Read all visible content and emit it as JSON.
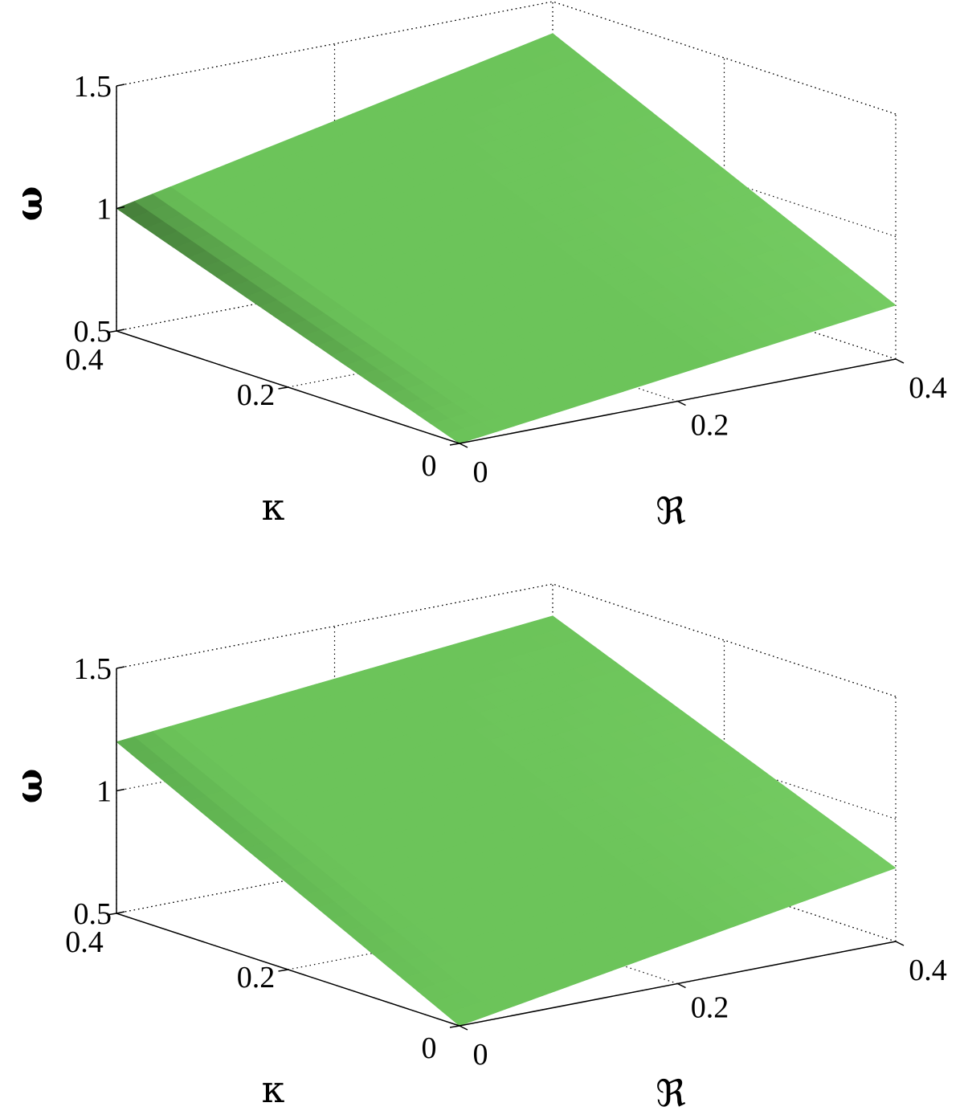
{
  "chart_data": [
    {
      "type": "surface",
      "title": "",
      "xlabel": "ℜ",
      "ylabel": "κ",
      "zlabel": "ω",
      "xlim": [
        0,
        0.4
      ],
      "ylim": [
        0,
        0.4
      ],
      "zlim": [
        0.5,
        1.5
      ],
      "xticks": [
        "0",
        "0.2",
        "0.4"
      ],
      "yticks": [
        "0",
        "0.2",
        "0.4"
      ],
      "zticks": [
        "0.5",
        "1",
        "1.5"
      ],
      "grid": true,
      "surface_color": "#6cc45a",
      "shadow_color": "#1f3a1a",
      "corners": {
        "k0_R0": 0.5,
        "k0.4_R0": 1.0,
        "k0.4_R0.4": 1.37,
        "k0_R0.4": 0.72
      }
    },
    {
      "type": "surface",
      "title": "",
      "xlabel": "ℜ",
      "ylabel": "κ",
      "zlabel": "ω",
      "xlim": [
        0,
        0.4
      ],
      "ylim": [
        0,
        0.4
      ],
      "zlim": [
        0.5,
        1.5
      ],
      "xticks": [
        "0",
        "0.2",
        "0.4"
      ],
      "yticks": [
        "0",
        "0.2",
        "0.4"
      ],
      "zticks": [
        "0.5",
        "1",
        "1.5"
      ],
      "grid": true,
      "surface_color": "#6cc45a",
      "shadow_color": "#4f9a45",
      "corners": {
        "k0_R0": 0.5,
        "k0.4_R0": 1.2,
        "k0.4_R0.4": 1.37,
        "k0_R0.4": 0.8
      }
    }
  ]
}
